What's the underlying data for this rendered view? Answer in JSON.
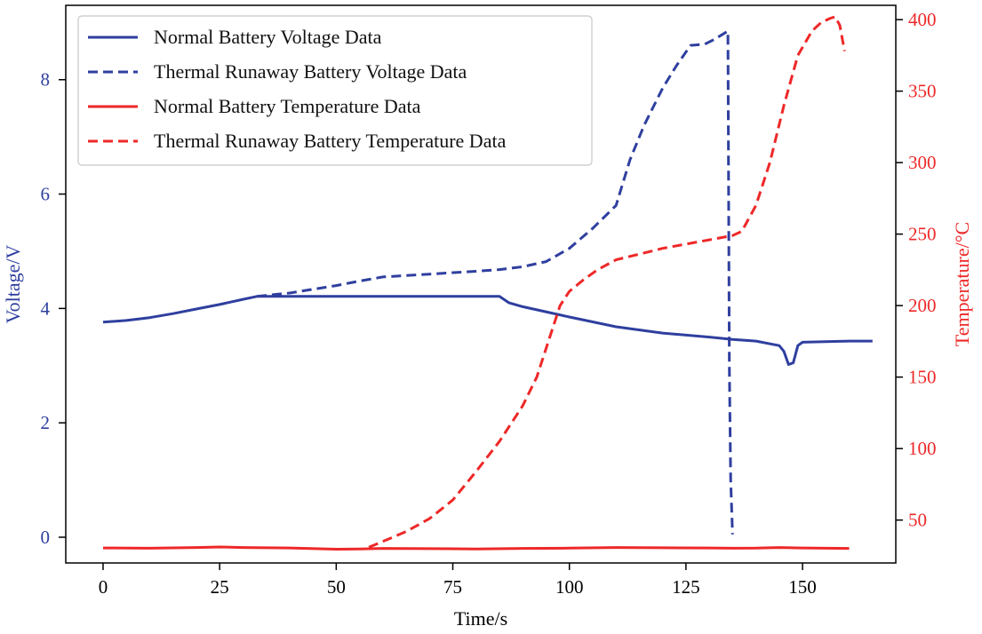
{
  "colors": {
    "voltage": "#2f3f9f",
    "temperature": "#ee2828",
    "axis": "#000000"
  },
  "chart_data": {
    "type": "line",
    "xlabel": "Time/s",
    "ylabel_left": "Voltage/V",
    "ylabel_right": "Temperature/°C",
    "xlim": [
      -8,
      170
    ],
    "ylim_left": [
      -0.45,
      9.3
    ],
    "ylim_right": [
      20,
      410
    ],
    "x_ticks": [
      0,
      25,
      50,
      75,
      100,
      125,
      150
    ],
    "x_tick_labels": [
      "0",
      "25",
      "50",
      "75",
      "100",
      "125",
      "150"
    ],
    "y_left_ticks": [
      0,
      2,
      4,
      6,
      8
    ],
    "y_left_tick_labels": [
      "0",
      "2",
      "4",
      "6",
      "8"
    ],
    "y_right_ticks": [
      50,
      100,
      150,
      200,
      250,
      300,
      350,
      400
    ],
    "y_right_tick_labels": [
      "50",
      "100",
      "150",
      "200",
      "250",
      "300",
      "350",
      "400"
    ],
    "grid": false,
    "legend_position": "top-left",
    "legend": [
      "Normal Battery Voltage Data",
      "Thermal Runaway Battery Voltage Data",
      "Normal Battery Temperature Data",
      "Thermal Runaway Battery Temperature Data"
    ],
    "series": [
      {
        "name": "Normal Battery Voltage Data",
        "axis": "left",
        "style": "solid",
        "color_key": "voltage",
        "x": [
          0,
          5,
          10,
          15,
          20,
          25,
          30,
          33,
          40,
          50,
          60,
          70,
          80,
          85,
          87,
          90,
          100,
          110,
          120,
          130,
          135,
          140,
          145,
          146,
          147,
          148,
          149,
          150,
          155,
          160,
          165
        ],
        "y": [
          3.76,
          3.79,
          3.84,
          3.91,
          3.99,
          4.07,
          4.16,
          4.21,
          4.21,
          4.21,
          4.21,
          4.21,
          4.21,
          4.21,
          4.1,
          4.03,
          3.85,
          3.68,
          3.57,
          3.5,
          3.46,
          3.43,
          3.35,
          3.25,
          3.02,
          3.05,
          3.35,
          3.41,
          3.42,
          3.43,
          3.43
        ]
      },
      {
        "name": "Thermal Runaway Battery Voltage Data",
        "axis": "left",
        "style": "dashed",
        "color_key": "voltage",
        "x": [
          33,
          40,
          50,
          55,
          60,
          70,
          80,
          85,
          90,
          95,
          100,
          105,
          110,
          113,
          116,
          120,
          123,
          126,
          129,
          131,
          134,
          134.3,
          134.6,
          135
        ],
        "y": [
          4.21,
          4.27,
          4.4,
          4.48,
          4.55,
          4.6,
          4.65,
          4.68,
          4.73,
          4.82,
          5.05,
          5.4,
          5.8,
          6.6,
          7.2,
          7.85,
          8.25,
          8.6,
          8.62,
          8.7,
          8.85,
          3.0,
          1.0,
          0.05
        ]
      },
      {
        "name": "Normal Battery Temperature Data",
        "axis": "right",
        "style": "solid",
        "color_key": "temperature",
        "x": [
          0,
          10,
          20,
          25,
          30,
          40,
          50,
          55,
          60,
          70,
          80,
          90,
          100,
          110,
          120,
          130,
          135,
          140,
          145,
          150,
          155,
          160
        ],
        "y": [
          30.5,
          30.3,
          30.8,
          31.2,
          30.8,
          30.5,
          29.6,
          29.8,
          30.2,
          30.0,
          29.8,
          30.2,
          30.4,
          30.8,
          30.6,
          30.5,
          30.3,
          30.4,
          30.8,
          30.5,
          30.3,
          30.2
        ]
      },
      {
        "name": "Thermal Runaway Battery Temperature Data",
        "axis": "right",
        "style": "dashed",
        "color_key": "temperature",
        "x": [
          57,
          60,
          65,
          70,
          75,
          80,
          85,
          90,
          93,
          96,
          98,
          100,
          103,
          106,
          110,
          115,
          120,
          125,
          130,
          135,
          137,
          140,
          143,
          146,
          149,
          152,
          154,
          156,
          157,
          158,
          159
        ],
        "y": [
          31,
          35,
          42,
          51,
          64,
          84,
          105,
          130,
          150,
          180,
          200,
          210,
          218,
          225,
          232,
          236,
          240,
          243,
          246,
          249,
          252,
          270,
          300,
          340,
          375,
          392,
          398,
          401,
          402,
          396,
          378
        ]
      }
    ]
  }
}
